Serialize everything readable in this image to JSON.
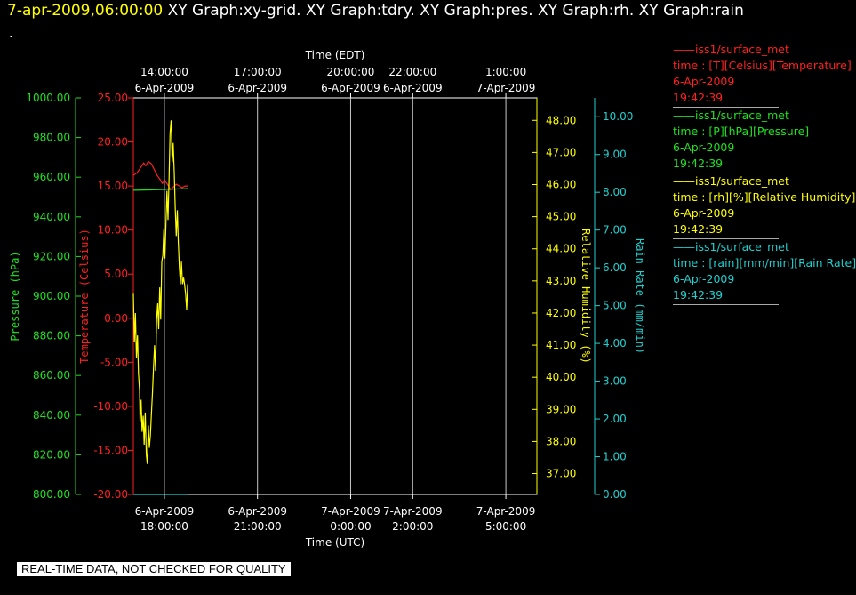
{
  "header": {
    "datetime": "7-apr-2009,06:00:00",
    "graphs": [
      "XY Graph:xy-grid.",
      "XY Graph:tdry.",
      "XY Graph:pres.",
      "XY Graph:rh.",
      "XY Graph:rain"
    ],
    "dot": "."
  },
  "footer": {
    "quality_note": "REAL-TIME DATA, NOT CHECKED FOR QUALITY"
  },
  "legend": [
    {
      "source": "iss1/surface_met",
      "line2": "time : [T][Celsius][Temperature]",
      "date": "6-Apr-2009",
      "time": "19:42:39",
      "color": "#ff2020"
    },
    {
      "source": "iss1/surface_met",
      "line2": "time : [P][hPa][Pressure]",
      "date": "6-Apr-2009",
      "time": "19:42:39",
      "color": "#20e020"
    },
    {
      "source": "iss1/surface_met",
      "line2": "time : [rh][%][Relative Humidity]",
      "date": "6-Apr-2009",
      "time": "19:42:39",
      "color": "#ffff00"
    },
    {
      "source": "iss1/surface_met",
      "line2": "time : [rain][mm/min][Rain Rate]",
      "date": "6-Apr-2009",
      "time": "19:42:39",
      "color": "#20d0d0"
    }
  ],
  "chart_data": {
    "type": "line",
    "colors": {
      "temperature": "#ff2020",
      "pressure": "#20e020",
      "humidity": "#ffff00",
      "rain": "#20d0d0",
      "frame": "#ffffff",
      "grid": "#c8c8c8"
    },
    "grid": true,
    "x_axis_bottom": {
      "label": "Time (UTC)",
      "range": [
        "2009-04-06 17:00",
        "2009-04-07 06:00"
      ],
      "ticks": [
        {
          "t": "2009-04-06 18:00",
          "date": "6-Apr-2009",
          "time": "18:00:00"
        },
        {
          "t": "2009-04-06 21:00",
          "date": "6-Apr-2009",
          "time": "21:00:00"
        },
        {
          "t": "2009-04-07 00:00",
          "date": "7-Apr-2009",
          "time": "0:00:00"
        },
        {
          "t": "2009-04-07 02:00",
          "date": "7-Apr-2009",
          "time": "2:00:00"
        },
        {
          "t": "2009-04-07 05:00",
          "date": "7-Apr-2009",
          "time": "5:00:00"
        }
      ]
    },
    "x_axis_top": {
      "label": "Time (EDT)",
      "ticks": [
        {
          "time": "14:00:00",
          "date": "6-Apr-2009"
        },
        {
          "time": "17:00:00",
          "date": "6-Apr-2009"
        },
        {
          "time": "20:00:00",
          "date": "6-Apr-2009"
        },
        {
          "time": "22:00:00",
          "date": "6-Apr-2009"
        },
        {
          "time": "1:00:00",
          "date": "7-Apr-2009"
        }
      ]
    },
    "y_axes": {
      "pressure": {
        "label": "Pressure (hPa)",
        "range": [
          800,
          1000
        ],
        "ticks": [
          "800.00",
          "820.00",
          "840.00",
          "860.00",
          "880.00",
          "900.00",
          "920.00",
          "940.00",
          "960.00",
          "980.00",
          "1000.00"
        ]
      },
      "temperature": {
        "label": "Temperature (Celsius)",
        "range": [
          -20,
          25
        ],
        "ticks": [
          "-20.00",
          "-15.00",
          "-10.00",
          "-5.00",
          "0.00",
          "5.00",
          "10.00",
          "15.00",
          "20.00",
          "25.00"
        ]
      },
      "humidity": {
        "label": "Relative Humidity (%)",
        "range": [
          36.35,
          48.7
        ],
        "ticks": [
          "37.00",
          "38.00",
          "39.00",
          "40.00",
          "41.00",
          "42.00",
          "43.00",
          "44.00",
          "45.00",
          "46.00",
          "47.00",
          "48.00"
        ]
      },
      "rain": {
        "label": "Rain Rate (mm/min)",
        "range": [
          0,
          10.5
        ],
        "ticks": [
          "0.00",
          "1.00",
          "2.00",
          "3.00",
          "4.00",
          "5.00",
          "6.00",
          "7.00",
          "8.00",
          "9.00",
          "10.00"
        ]
      }
    },
    "series": [
      {
        "name": "Temperature",
        "axis": "temperature",
        "x": [
          "2009-04-06 17:00",
          "2009-04-06 17:07",
          "2009-04-06 17:13",
          "2009-04-06 17:20",
          "2009-04-06 17:24",
          "2009-04-06 17:29",
          "2009-04-06 17:35",
          "2009-04-06 17:40",
          "2009-04-06 17:46",
          "2009-04-06 17:51",
          "2009-04-06 17:56",
          "2009-04-06 18:01",
          "2009-04-06 18:07",
          "2009-04-06 18:12",
          "2009-04-06 18:18",
          "2009-04-06 18:23",
          "2009-04-06 18:29",
          "2009-04-06 18:34",
          "2009-04-06 18:40",
          "2009-04-06 18:45"
        ],
        "y": [
          16.2,
          16.5,
          17.0,
          17.6,
          17.3,
          17.8,
          17.5,
          16.9,
          16.2,
          15.8,
          15.3,
          15.6,
          15.1,
          14.6,
          14.9,
          15.2,
          15.0,
          14.8,
          15.0,
          15.0
        ]
      },
      {
        "name": "Pressure",
        "axis": "pressure",
        "x": [
          "2009-04-06 17:00",
          "2009-04-06 17:30",
          "2009-04-06 18:00",
          "2009-04-06 18:30",
          "2009-04-06 18:45"
        ],
        "y": [
          953.4,
          953.6,
          953.8,
          954.1,
          954.2
        ]
      },
      {
        "name": "Relative Humidity",
        "axis": "humidity",
        "x": [
          "2009-04-06 17:00",
          "2009-04-06 17:02",
          "2009-04-06 17:04",
          "2009-04-06 17:06",
          "2009-04-06 17:08",
          "2009-04-06 17:10",
          "2009-04-06 17:12",
          "2009-04-06 17:13",
          "2009-04-06 17:15",
          "2009-04-06 17:17",
          "2009-04-06 17:19",
          "2009-04-06 17:21",
          "2009-04-06 17:23",
          "2009-04-06 17:25",
          "2009-04-06 17:27",
          "2009-04-06 17:29",
          "2009-04-06 17:31",
          "2009-04-06 17:33",
          "2009-04-06 17:35",
          "2009-04-06 17:37",
          "2009-04-06 17:39",
          "2009-04-06 17:41",
          "2009-04-06 17:43",
          "2009-04-06 17:45",
          "2009-04-06 17:47",
          "2009-04-06 17:49",
          "2009-04-06 17:51",
          "2009-04-06 17:53",
          "2009-04-06 17:55",
          "2009-04-06 17:57",
          "2009-04-06 17:59",
          "2009-04-06 18:01",
          "2009-04-06 18:03",
          "2009-04-06 18:05",
          "2009-04-06 18:07",
          "2009-04-06 18:09",
          "2009-04-06 18:11",
          "2009-04-06 18:13",
          "2009-04-06 18:15",
          "2009-04-06 18:17",
          "2009-04-06 18:19",
          "2009-04-06 18:21",
          "2009-04-06 18:23",
          "2009-04-06 18:25",
          "2009-04-06 18:27",
          "2009-04-06 18:29",
          "2009-04-06 18:31",
          "2009-04-06 18:33",
          "2009-04-06 18:35",
          "2009-04-06 18:37",
          "2009-04-06 18:39",
          "2009-04-06 18:41",
          "2009-04-06 18:43",
          "2009-04-06 18:45"
        ],
        "y": [
          42.6,
          41.1,
          42.0,
          40.6,
          41.3,
          40.1,
          39.6,
          38.6,
          39.3,
          38.3,
          38.8,
          37.9,
          38.9,
          37.6,
          37.3,
          38.5,
          37.8,
          38.2,
          38.9,
          39.5,
          40.3,
          41.0,
          40.2,
          41.8,
          42.3,
          41.5,
          42.8,
          41.8,
          43.6,
          43.8,
          44.6,
          43.7,
          44.8,
          45.8,
          44.9,
          46.2,
          47.6,
          48.0,
          46.7,
          47.3,
          46.4,
          45.3,
          44.4,
          45.2,
          44.2,
          43.4,
          42.9,
          43.6,
          42.9,
          43.1,
          42.9,
          42.6,
          42.1,
          42.9
        ]
      },
      {
        "name": "Rain Rate",
        "axis": "rain",
        "x": [
          "2009-04-06 17:00",
          "2009-04-06 18:45"
        ],
        "y": [
          0.0,
          0.0
        ]
      }
    ]
  }
}
